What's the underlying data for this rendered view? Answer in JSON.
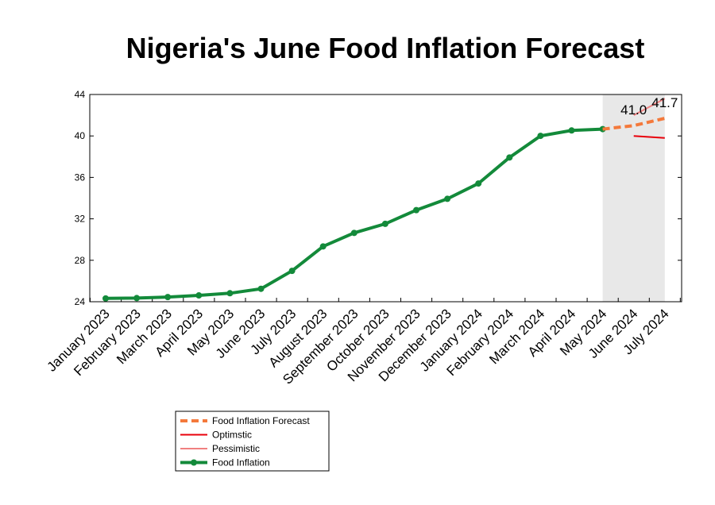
{
  "chart_data": {
    "type": "line",
    "title": "Nigeria's June Food Inflation Forecast",
    "categories": [
      "January 2023",
      "February 2023",
      "March 2023",
      "April 2023",
      "May 2023",
      "June 2023",
      "July 2023",
      "August 2023",
      "September 2023",
      "October 2023",
      "November 2023",
      "December 2023",
      "January 2024",
      "February 2024",
      "March 2024",
      "April 2024",
      "May 2024",
      "June 2024",
      "July 2024"
    ],
    "ylim": [
      24,
      44
    ],
    "yticks": [
      24,
      28,
      32,
      36,
      40,
      44
    ],
    "forecast_region": [
      "May 2024",
      "July 2024"
    ],
    "series": [
      {
        "name": "Food Inflation Forecast",
        "color": "#f4793b",
        "style": "dashed",
        "x": [
          "May 2024",
          "June 2024",
          "July 2024"
        ],
        "values": [
          40.66,
          41.0,
          41.7
        ]
      },
      {
        "name": "Optimstic",
        "color": "#e8000b",
        "style": "solid",
        "x": [
          "June 2024",
          "July 2024"
        ],
        "values": [
          40.0,
          39.8
        ]
      },
      {
        "name": "Pessimistic",
        "color": "#f08080",
        "style": "solid",
        "x": [
          "June 2024",
          "July 2024"
        ],
        "values": [
          42.0,
          43.6
        ]
      },
      {
        "name": "Food Inflation",
        "color": "#138a3a",
        "style": "solid-marker",
        "x": [
          "January 2023",
          "February 2023",
          "March 2023",
          "April 2023",
          "May 2023",
          "June 2023",
          "July 2023",
          "August 2023",
          "September 2023",
          "October 2023",
          "November 2023",
          "December 2023",
          "January 2024",
          "February 2024",
          "March 2024",
          "April 2024",
          "May 2024"
        ],
        "values": [
          24.32,
          24.35,
          24.45,
          24.61,
          24.82,
          25.25,
          26.98,
          29.34,
          30.64,
          31.52,
          32.84,
          33.93,
          35.41,
          37.92,
          40.01,
          40.53,
          40.66
        ]
      }
    ],
    "data_labels": [
      {
        "x": "June 2024",
        "text": "41.0"
      },
      {
        "x": "July 2024",
        "text": "41.7"
      }
    ],
    "legend_position": "bottom-left",
    "grid": false
  }
}
